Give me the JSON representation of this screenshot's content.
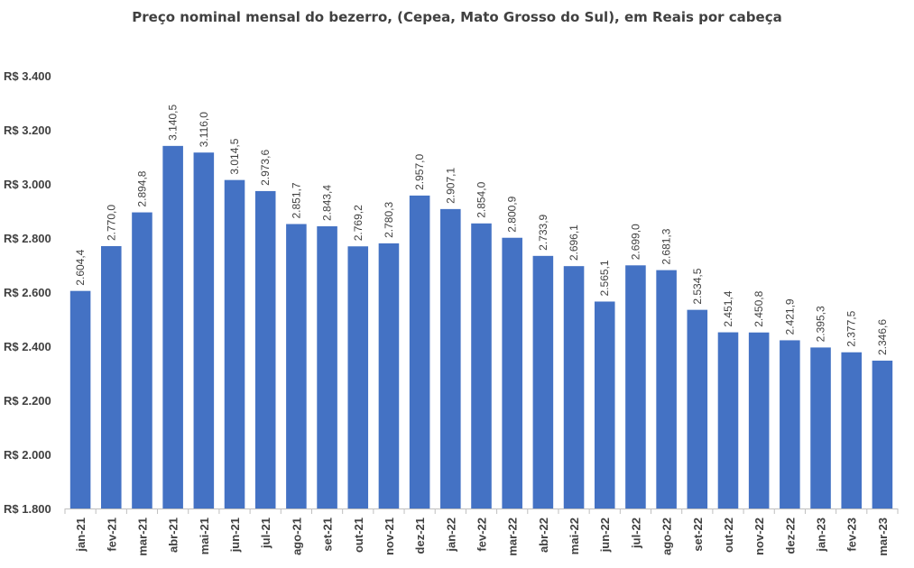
{
  "chart_data": {
    "type": "bar",
    "title": "Preço nominal mensal do bezerro, (Cepea, Mato Grosso do Sul), em Reais por cabeça",
    "xlabel": "",
    "ylabel": "",
    "ylim": [
      1800,
      3400
    ],
    "yticks": [
      1800,
      2000,
      2200,
      2400,
      2600,
      2800,
      3000,
      3200,
      3400
    ],
    "ytick_labels": [
      "R$ 1.800",
      "R$ 2.000",
      "R$ 2.200",
      "R$ 2.400",
      "R$ 2.600",
      "R$ 2.800",
      "R$ 3.000",
      "R$ 3.200",
      "R$ 3.400"
    ],
    "grid": false,
    "legend": "none",
    "bar_color": "#4472C4",
    "categories": [
      "jan-21",
      "fev-21",
      "mar-21",
      "abr-21",
      "mai-21",
      "jun-21",
      "jul-21",
      "ago-21",
      "set-21",
      "out-21",
      "nov-21",
      "dez-21",
      "jan-22",
      "fev-22",
      "mar-22",
      "abr-22",
      "mai-22",
      "jun-22",
      "jul-22",
      "ago-22",
      "set-22",
      "out-22",
      "nov-22",
      "dez-22",
      "jan-23",
      "fev-23",
      "mar-23"
    ],
    "values": [
      2604.4,
      2770.0,
      2894.8,
      3140.5,
      3116.0,
      3014.5,
      2973.6,
      2851.7,
      2843.4,
      2769.2,
      2780.3,
      2957.0,
      2907.1,
      2854.0,
      2800.9,
      2733.9,
      2696.1,
      2565.1,
      2699.0,
      2681.3,
      2534.5,
      2451.4,
      2450.8,
      2421.9,
      2395.3,
      2377.5,
      2346.6
    ],
    "data_labels": [
      "2.604,4",
      "2.770,0",
      "2.894,8",
      "3.140,5",
      "3.116,0",
      "3.014,5",
      "2.973,6",
      "2.851,7",
      "2.843,4",
      "2.769,2",
      "2.780,3",
      "2.957,0",
      "2.907,1",
      "2.854,0",
      "2.800,9",
      "2.733,9",
      "2.696,1",
      "2.565,1",
      "2.699,0",
      "2.681,3",
      "2.534,5",
      "2.451,4",
      "2.450,8",
      "2.421,9",
      "2.395,3",
      "2.377,5",
      "2.346,6"
    ]
  }
}
